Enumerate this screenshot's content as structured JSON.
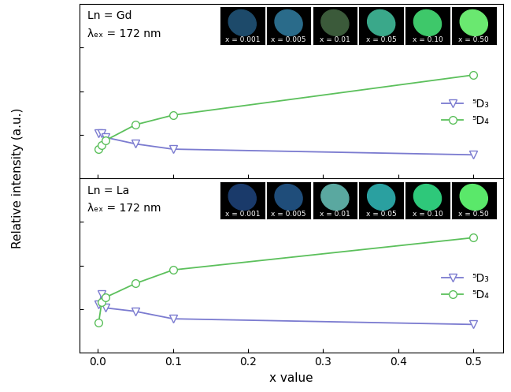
{
  "chart_data": [
    {
      "type": "line",
      "ylabel": "Relative intensity (a.u.)",
      "annotations": [
        "Ln = Gd",
        "λₑₓ = 172 nm"
      ],
      "inset_labels": [
        "x = 0.001",
        "x = 0.005",
        "x = 0.01",
        "x = 0.05",
        "x = 0.10",
        "x = 0.50"
      ],
      "x": [
        0.001,
        0.005,
        0.01,
        0.05,
        0.1,
        0.5
      ],
      "series": [
        {
          "name": "⁵D₃",
          "color": "#7b7bd0",
          "marker": "triangle_down",
          "line_style": "solid",
          "values": [
            1.04,
            1.03,
            0.94,
            0.79,
            0.67,
            0.54
          ]
        },
        {
          "name": "⁵D₄",
          "color": "#5cc05c",
          "marker": "circle",
          "line_style": "solid",
          "values": [
            0.67,
            0.76,
            0.87,
            1.23,
            1.45,
            2.37
          ]
        }
      ],
      "xlim": [
        -0.025,
        0.54
      ],
      "ylim": [
        0,
        4
      ],
      "xticks": [
        0.0,
        0.1,
        0.2,
        0.3,
        0.4,
        0.5
      ],
      "yticks": [
        1,
        2,
        3
      ],
      "tick_labels": false,
      "legend": "center right"
    },
    {
      "type": "line",
      "xlabel": "x value",
      "annotations": [
        "Ln = La",
        "λₑₓ = 172 nm"
      ],
      "inset_labels": [
        "x = 0.001",
        "x = 0.005",
        "x = 0.01",
        "x = 0.05",
        "x = 0.10",
        "x = 0.50"
      ],
      "x": [
        0.001,
        0.005,
        0.01,
        0.05,
        0.1,
        0.5
      ],
      "series": [
        {
          "name": "⁵D₃",
          "color": "#7b7bd0",
          "marker": "triangle_down",
          "line_style": "solid",
          "values": [
            1.11,
            1.34,
            1.03,
            0.95,
            0.78,
            0.65
          ]
        },
        {
          "name": "⁵D₄",
          "color": "#5cc05c",
          "marker": "circle",
          "line_style": "solid",
          "values": [
            0.7,
            1.16,
            1.27,
            1.59,
            1.9,
            2.64
          ]
        }
      ],
      "xlim": [
        -0.025,
        0.54
      ],
      "ylim": [
        0,
        4
      ],
      "xticks": [
        0.0,
        0.1,
        0.2,
        0.3,
        0.4,
        0.5
      ],
      "yticks": [
        1,
        2,
        3
      ],
      "tick_labels": "x",
      "legend": "center right"
    }
  ]
}
